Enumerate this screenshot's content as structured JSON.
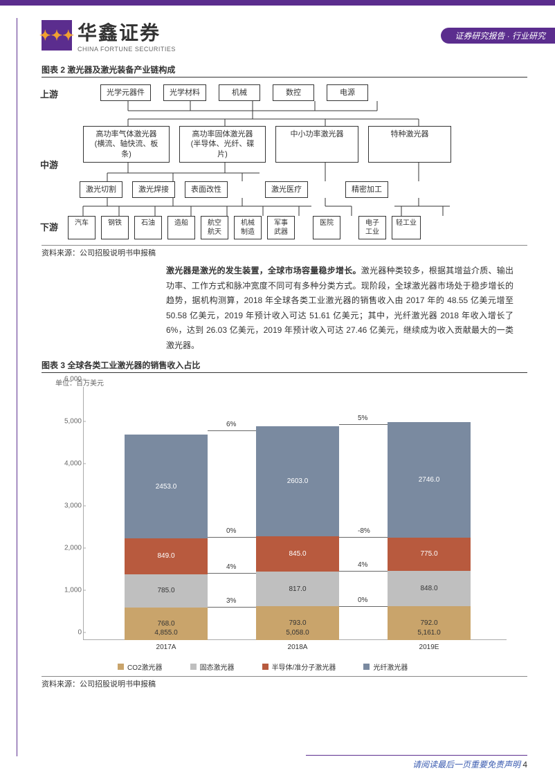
{
  "header": {
    "logo_cn": "华鑫证券",
    "logo_en": "CHINA FORTUNE SECURITIES",
    "badge": "证券研究报告 · 行业研究"
  },
  "fig2": {
    "title": "图表 2 激光器及激光装备产业链构成",
    "labels": {
      "up": "上游",
      "mid": "中游",
      "down": "下游"
    },
    "row_up": [
      "光学元器件",
      "光学材料",
      "机械",
      "数控",
      "电源"
    ],
    "row_mid1": [
      "高功率气体激光器\n(横流、轴快流、板\n条)",
      "高功率固体激光器\n(半导体、光纤、碟\n片)",
      "中小功率激光器",
      "特种激光器"
    ],
    "row_mid2": [
      "激光切割",
      "激光焊接",
      "表面改性",
      "激光医疗",
      "精密加工"
    ],
    "row_down": [
      "汽车",
      "钢铁",
      "石油",
      "造船",
      "航空\n航天",
      "机械\n制造",
      "军事\n武器",
      "医院",
      "电子\n工业",
      "轻工业"
    ],
    "source": "资料来源：公司招股说明书申报稿"
  },
  "body": {
    "bold": "激光器是激光的发生装置，全球市场容量稳步增长。",
    "rest": "激光器种类较多，根据其增益介质、输出功率、工作方式和脉冲宽度不同可有多种分类方式。现阶段，全球激光器市场处于稳步增长的趋势，据机构测算，2018 年全球各类工业激光器的销售收入由 2017 年的 48.55 亿美元增至 50.58 亿美元，2019 年预计收入可达 51.61 亿美元；其中，光纤激光器 2018 年收入增长了 6%，达到 26.03 亿美元，2019 年预计收入可达 27.46 亿美元，继续成为收入贡献最大的一类激光器。"
  },
  "fig3": {
    "title": "图表 3 全球各类工业激光器的销售收入占比",
    "unit": "单位：百万美元",
    "ylim": [
      0,
      6000
    ],
    "ytick_step": 1000,
    "yticks": [
      "0",
      "1,000",
      "2,000",
      "3,000",
      "4,000",
      "5,000",
      "6,000"
    ],
    "categories": [
      "2017A",
      "2018A",
      "2019E"
    ],
    "series": [
      {
        "name": "CO2激光器",
        "color": "#c9a46b",
        "text": "dark",
        "values": [
          768.0,
          793.0,
          792.0
        ]
      },
      {
        "name": "固态激光器",
        "color": "#bfbfbf",
        "text": "dark",
        "values": [
          785.0,
          817.0,
          848.0
        ]
      },
      {
        "name": "半导体/准分子激光器",
        "color": "#b85a3e",
        "text": "light",
        "values": [
          849.0,
          845.0,
          775.0
        ]
      },
      {
        "name": "光纤激光器",
        "color": "#7a8aa0",
        "text": "light",
        "values": [
          2453.0,
          2603.0,
          2746.0
        ]
      }
    ],
    "totals": [
      "4,855.0",
      "5,058.0",
      "5,161.0"
    ],
    "growth_top": [
      "6%",
      "5%"
    ],
    "growth_rows": [
      [
        "0%",
        "-8%"
      ],
      [
        "4%",
        "4%"
      ],
      [
        "3%",
        "0%"
      ]
    ],
    "source": "资料来源：公司招股说明书申报稿"
  },
  "footer": {
    "text": "请阅读最后一页重要免责声明",
    "page": "4"
  },
  "colors": {
    "brand": "#5b2d8e",
    "accent": "#f0a030"
  }
}
